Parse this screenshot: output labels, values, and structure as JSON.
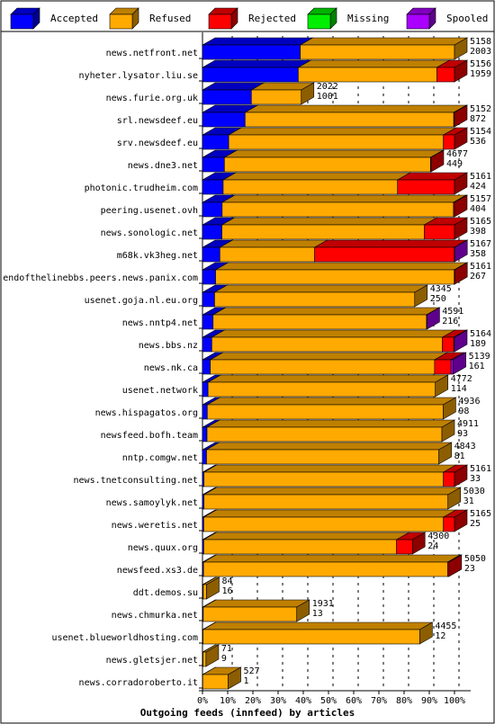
{
  "chart_data": {
    "type": "bar",
    "stacked": true,
    "orientation": "horizontal",
    "title": "Outgoing feeds (innfeed) by articles",
    "xlim": [
      0,
      100
    ],
    "x_ticks": [
      "0%",
      "10%",
      "20%",
      "30%",
      "40%",
      "50%",
      "60%",
      "70%",
      "80%",
      "90%",
      "100%"
    ],
    "grid": true,
    "legend_position": "top",
    "series": [
      {
        "name": "Accepted",
        "color": "#0000ff"
      },
      {
        "name": "Refused",
        "color": "#ffaa00"
      },
      {
        "name": "Rejected",
        "color": "#ff0000"
      },
      {
        "name": "Missing",
        "color": "#00ee00"
      },
      {
        "name": "Spooled",
        "color": "#aa00ff"
      }
    ],
    "rows": [
      {
        "label": "news.netfront.net",
        "top": "5158",
        "bottom": "2003",
        "accepted": 38.8,
        "refused": 61.2,
        "rejected": 0,
        "missing": 0,
        "spooled": 0
      },
      {
        "label": "nyheter.lysator.liu.se",
        "top": "5156",
        "bottom": "1959",
        "accepted": 38.0,
        "refused": 55.0,
        "rejected": 7.0,
        "missing": 0,
        "spooled": 0
      },
      {
        "label": "news.furie.org.uk",
        "top": "2022",
        "bottom": "1001",
        "accepted": 19.4,
        "refused": 19.8,
        "rejected": 0,
        "missing": 0,
        "spooled": 0
      },
      {
        "label": "srl.newsdeef.eu",
        "top": "5152",
        "bottom": "872",
        "accepted": 16.9,
        "refused": 82.8,
        "rejected": 0.3,
        "missing": 0,
        "spooled": 0
      },
      {
        "label": "srv.newsdeef.eu",
        "top": "5154",
        "bottom": "536",
        "accepted": 10.4,
        "refused": 85.2,
        "rejected": 4.4,
        "missing": 0,
        "spooled": 0
      },
      {
        "label": "news.dne3.net",
        "top": "4677",
        "bottom": "449",
        "accepted": 8.7,
        "refused": 81.8,
        "rejected": 0.2,
        "missing": 0,
        "spooled": 0
      },
      {
        "label": "photonic.trudheim.com",
        "top": "5161",
        "bottom": "424",
        "accepted": 8.2,
        "refused": 69.2,
        "rejected": 22.6,
        "missing": 0,
        "spooled": 0
      },
      {
        "label": "peering.usenet.ovh",
        "top": "5157",
        "bottom": "404",
        "accepted": 7.8,
        "refused": 91.8,
        "rejected": 0.4,
        "missing": 0,
        "spooled": 0
      },
      {
        "label": "news.sonologic.net",
        "top": "5165",
        "bottom": "398",
        "accepted": 7.7,
        "refused": 80.3,
        "rejected": 12.0,
        "missing": 0,
        "spooled": 0
      },
      {
        "label": "m68k.vk3heg.net",
        "top": "5167",
        "bottom": "358",
        "accepted": 6.9,
        "refused": 37.6,
        "rejected": 55.4,
        "missing": 0,
        "spooled": 0.1
      },
      {
        "label": "endofthelinebbs.peers.news.panix.com",
        "top": "5161",
        "bottom": "267",
        "accepted": 5.2,
        "refused": 94.7,
        "rejected": 0.1,
        "missing": 0,
        "spooled": 0
      },
      {
        "label": "usenet.goja.nl.eu.org",
        "top": "4345",
        "bottom": "250",
        "accepted": 4.8,
        "refused": 79.4,
        "rejected": 0,
        "missing": 0,
        "spooled": 0
      },
      {
        "label": "news.nntp4.net",
        "top": "4591",
        "bottom": "216",
        "accepted": 4.2,
        "refused": 84.7,
        "rejected": 0,
        "missing": 0,
        "spooled": 0.1
      },
      {
        "label": "news.bbs.nz",
        "top": "5164",
        "bottom": "189",
        "accepted": 3.7,
        "refused": 91.5,
        "rejected": 4.5,
        "missing": 0,
        "spooled": 0.3
      },
      {
        "label": "news.nk.ca",
        "top": "5139",
        "bottom": "161",
        "accepted": 3.1,
        "refused": 89.0,
        "rejected": 6.5,
        "missing": 0,
        "spooled": 0.9
      },
      {
        "label": "usenet.network",
        "top": "4772",
        "bottom": "114",
        "accepted": 2.2,
        "refused": 90.2,
        "rejected": 0,
        "missing": 0,
        "spooled": 0
      },
      {
        "label": "news.hispagatos.org",
        "top": "4936",
        "bottom": "98",
        "accepted": 1.9,
        "refused": 93.6,
        "rejected": 0,
        "missing": 0,
        "spooled": 0
      },
      {
        "label": "newsfeed.bofh.team",
        "top": "4911",
        "bottom": "93",
        "accepted": 1.8,
        "refused": 93.2,
        "rejected": 0,
        "missing": 0,
        "spooled": 0
      },
      {
        "label": "nntp.comgw.net",
        "top": "4843",
        "bottom": "81",
        "accepted": 1.6,
        "refused": 92.2,
        "rejected": 0,
        "missing": 0,
        "spooled": 0
      },
      {
        "label": "news.tnetconsulting.net",
        "top": "5161",
        "bottom": "33",
        "accepted": 0.6,
        "refused": 95.0,
        "rejected": 4.4,
        "missing": 0,
        "spooled": 0
      },
      {
        "label": "news.samoylyk.net",
        "top": "5030",
        "bottom": "31",
        "accepted": 0.6,
        "refused": 96.8,
        "rejected": 0,
        "missing": 0,
        "spooled": 0
      },
      {
        "label": "news.weretis.net",
        "top": "5165",
        "bottom": "25",
        "accepted": 0.5,
        "refused": 95.1,
        "rejected": 4.4,
        "missing": 0,
        "spooled": 0
      },
      {
        "label": "news.quux.org",
        "top": "4300",
        "bottom": "24",
        "accepted": 0.5,
        "refused": 76.5,
        "rejected": 6.3,
        "missing": 0,
        "spooled": 0
      },
      {
        "label": "newsfeed.xs3.de",
        "top": "5050",
        "bottom": "23",
        "accepted": 0.4,
        "refused": 96.9,
        "rejected": 0.5,
        "missing": 0,
        "spooled": 0
      },
      {
        "label": "ddt.demos.su",
        "top": "84",
        "bottom": "16",
        "accepted": 0.3,
        "refused": 1.3,
        "rejected": 0,
        "missing": 0,
        "spooled": 0
      },
      {
        "label": "news.chmurka.net",
        "top": "1931",
        "bottom": "13",
        "accepted": 0.3,
        "refused": 37.1,
        "rejected": 0,
        "missing": 0,
        "spooled": 0
      },
      {
        "label": "usenet.blueworldhosting.com",
        "top": "4455",
        "bottom": "12",
        "accepted": 0.2,
        "refused": 86.0,
        "rejected": 0,
        "missing": 0,
        "spooled": 0
      },
      {
        "label": "news.gletsjer.net",
        "top": "71",
        "bottom": "9",
        "accepted": 0.2,
        "refused": 1.2,
        "rejected": 0,
        "missing": 0,
        "spooled": 0
      },
      {
        "label": "news.corradoroberto.it",
        "top": "527",
        "bottom": "1",
        "accepted": 0.1,
        "refused": 10.1,
        "rejected": 0,
        "missing": 0,
        "spooled": 0
      }
    ]
  }
}
